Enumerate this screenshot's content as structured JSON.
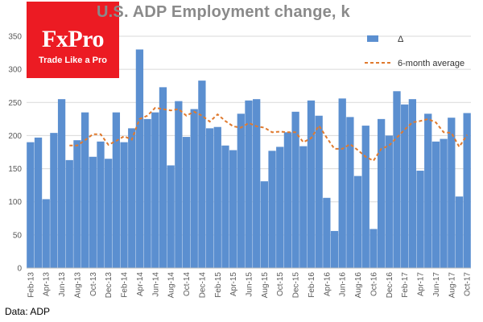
{
  "chart_data": {
    "type": "bar",
    "title": "U.S. ADP Employment change, k",
    "source": "Data: ADP",
    "logo": {
      "name": "FxPro",
      "tagline": "Trade Like a Pro"
    },
    "ylim": [
      0,
      350
    ],
    "yticks": [
      0,
      50,
      100,
      150,
      200,
      250,
      300,
      350
    ],
    "grid": true,
    "legend_placement": "top-right",
    "x_tick_labels": [
      "Feb-13",
      "Apr-13",
      "Jun-13",
      "Aug-13",
      "Oct-13",
      "Dec-13",
      "Feb-14",
      "Apr-14",
      "Jun-14",
      "Aug-14",
      "Oct-14",
      "Dec-14",
      "Feb-15",
      "Apr-15",
      "Jun-15",
      "Aug-15",
      "Oct-15",
      "Dec-15",
      "Feb-16",
      "Apr-16",
      "Jun-16",
      "Aug-16",
      "Oct-16",
      "Dec-16",
      "Feb-17",
      "Apr-17",
      "Jun-17",
      "Aug-17",
      "Oct-17"
    ],
    "categories": [
      "Feb-13",
      "Mar-13",
      "Apr-13",
      "May-13",
      "Jun-13",
      "Jul-13",
      "Aug-13",
      "Sep-13",
      "Oct-13",
      "Nov-13",
      "Dec-13",
      "Jan-14",
      "Feb-14",
      "Mar-14",
      "Apr-14",
      "May-14",
      "Jun-14",
      "Jul-14",
      "Aug-14",
      "Sep-14",
      "Oct-14",
      "Nov-14",
      "Dec-14",
      "Jan-15",
      "Feb-15",
      "Mar-15",
      "Apr-15",
      "May-15",
      "Jun-15",
      "Jul-15",
      "Aug-15",
      "Sep-15",
      "Oct-15",
      "Nov-15",
      "Dec-15",
      "Jan-16",
      "Feb-16",
      "Mar-16",
      "Apr-16",
      "May-16",
      "Jun-16",
      "Jul-16",
      "Aug-16",
      "Sep-16",
      "Oct-16",
      "Nov-16",
      "Dec-16",
      "Jan-17",
      "Feb-17",
      "Mar-17",
      "Apr-17",
      "May-17",
      "Jun-17",
      "Jul-17",
      "Aug-17",
      "Sep-17",
      "Oct-17"
    ],
    "series": [
      {
        "name": "Δ",
        "type": "bar",
        "color": "#5b8fd0",
        "values": [
          190,
          197,
          104,
          204,
          255,
          163,
          193,
          235,
          168,
          191,
          165,
          235,
          190,
          211,
          330,
          225,
          235,
          273,
          155,
          252,
          198,
          240,
          283,
          211,
          213,
          185,
          178,
          233,
          253,
          255,
          131,
          177,
          183,
          205,
          236,
          184,
          253,
          230,
          106,
          56,
          256,
          228,
          139,
          215,
          59,
          225,
          200,
          267,
          247,
          255,
          147,
          233,
          191,
          195,
          227,
          108,
          234
        ]
      },
      {
        "name": "6-month average",
        "type": "line",
        "style": "dashed",
        "color": "#e07a2e",
        "values": [
          null,
          null,
          null,
          null,
          null,
          185,
          185,
          193,
          202,
          202,
          186,
          192,
          199,
          194,
          225,
          230,
          242,
          240,
          238,
          240,
          230,
          236,
          230,
          221,
          232,
          222,
          214,
          212,
          219,
          214,
          212,
          205,
          206,
          205,
          205,
          190,
          196,
          215,
          197,
          180,
          180,
          187,
          178,
          168,
          162,
          180,
          185,
          197,
          209,
          220,
          222,
          225,
          220,
          205,
          204,
          183,
          201
        ]
      }
    ]
  }
}
